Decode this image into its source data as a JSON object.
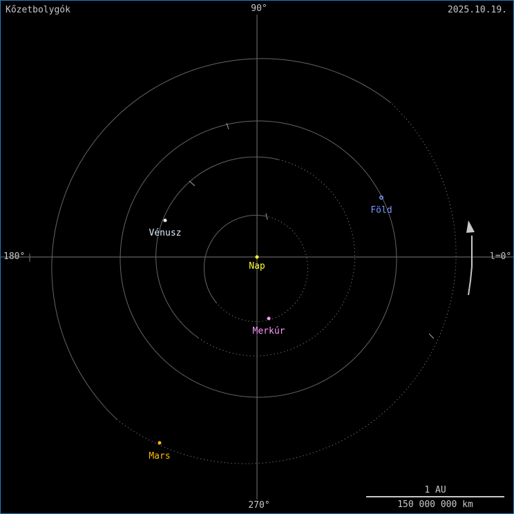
{
  "title": "Kőzetbolygók",
  "date": "2025.10.19.",
  "axes": {
    "deg90": "90°",
    "deg180": "180°",
    "deg270": "270°",
    "deg0": "l=0°"
  },
  "scale": {
    "top": "1 AU",
    "bottom": "150 000 000 km"
  },
  "bodies": {
    "sun": {
      "name": "Nap",
      "color": "#ffff33"
    },
    "mercury": {
      "name": "Merkúr",
      "color": "#ff99ff"
    },
    "venus": {
      "name": "Vénusz",
      "color": "#ddeeff"
    },
    "earth": {
      "name": "Föld",
      "color": "#7799ff"
    },
    "mars": {
      "name": "Mars",
      "color": "#ffbb00"
    }
  },
  "colors": {
    "border": "#1a7fc8",
    "orbit": "#777777",
    "text": "#c8c8c8"
  }
}
